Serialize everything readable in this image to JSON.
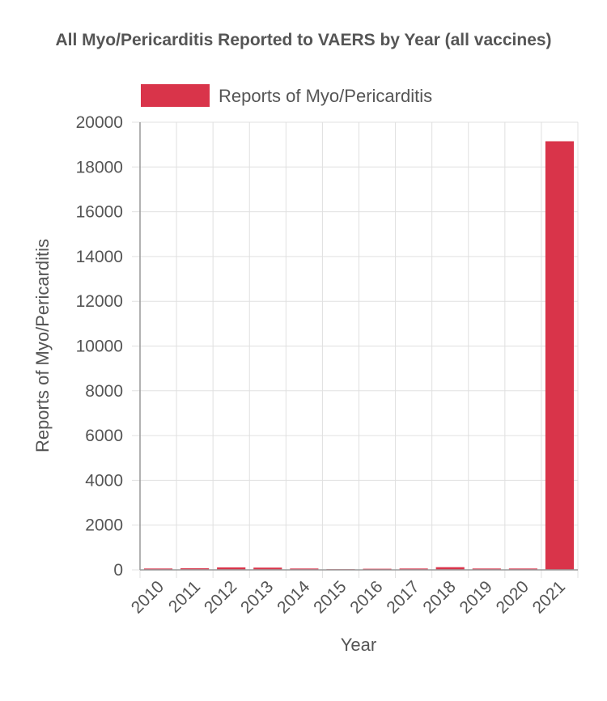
{
  "chart_data": {
    "type": "bar",
    "title": "All Myo/Pericarditis Reported to VAERS by Year (all vaccines)",
    "xlabel": "Year",
    "ylabel": "Reports of Myo/Pericarditis",
    "categories": [
      "2010",
      "2011",
      "2012",
      "2013",
      "2014",
      "2015",
      "2016",
      "2017",
      "2018",
      "2019",
      "2020",
      "2021"
    ],
    "series": [
      {
        "name": "Reports of Myo/Pericarditis",
        "values": [
          60,
          70,
          110,
          100,
          60,
          30,
          50,
          60,
          120,
          60,
          60,
          19150
        ],
        "color": "#d9344a"
      }
    ],
    "ylim": [
      0,
      20000
    ],
    "yticks": [
      0,
      2000,
      4000,
      6000,
      8000,
      10000,
      12000,
      14000,
      16000,
      18000,
      20000
    ],
    "grid": true,
    "legend_position": "top"
  }
}
